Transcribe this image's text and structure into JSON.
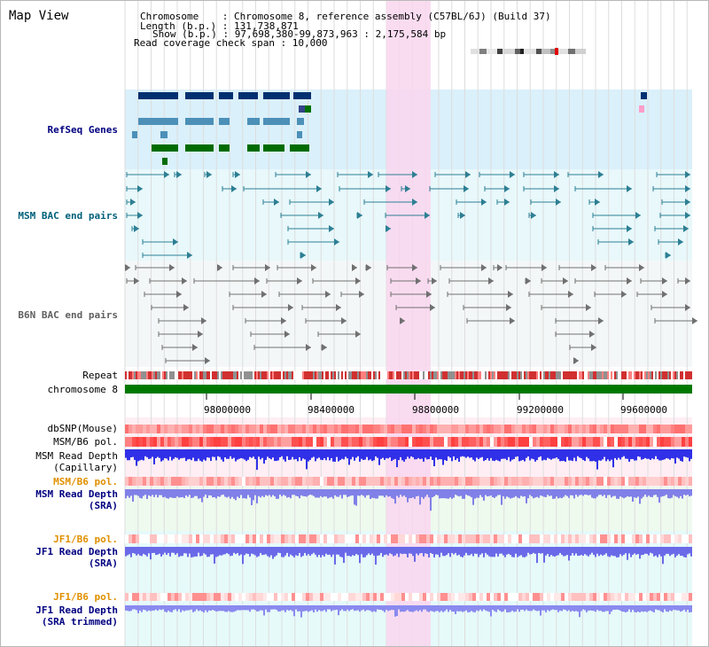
{
  "view": {
    "title": "Map View",
    "header": {
      "chromosome_line": "Chromosome    : Chromosome 8, reference assembly (C57BL/6J) (Build 37)",
      "length_line": "Length (b.p.) : 131,738,871",
      "show_line": "Show (b.p.) : 97,698,380-99,873,963 : 2,175,584 bp",
      "coverage_line": "Read coverage check span : 10,000"
    }
  },
  "tracks": {
    "refseq": "RefSeq Genes",
    "msm_bac": "MSM BAC end pairs",
    "b6n_bac": "B6N BAC end pairs",
    "repeat": "Repeat",
    "chromosome": "chromosome 8",
    "dbsnp": "dbSNP(Mouse)",
    "msm_b6_pol_1": "MSM/B6 pol.",
    "msm_depth_cap_1": "MSM Read Depth",
    "msm_depth_cap_2": "(Capillary)",
    "msm_b6_pol_2": "MSM/B6 pol.",
    "msm_depth_sra_1": "MSM Read Depth",
    "msm_depth_sra_2": "(SRA)",
    "jf1_b6_pol_1": "JF1/B6 pol.",
    "jf1_depth_sra_1": "JF1 Read Depth",
    "jf1_depth_sra_2": "(SRA)",
    "jf1_b6_pol_2": "JF1/B6 pol.",
    "jf1_depth_trim_1": "JF1 Read Depth",
    "jf1_depth_trim_2": "(SRA trimmed)"
  },
  "axis": {
    "ticks": [
      "98000000",
      "98400000",
      "98800000",
      "99200000",
      "99600000"
    ]
  },
  "colors": {
    "highlight": "#f9d6ef",
    "chromosome_bar": "#007800",
    "refseq_bg": "#daf0fa",
    "msm_bac_bg": "#e8f8fb",
    "depth_blue": "#3030e8"
  }
}
